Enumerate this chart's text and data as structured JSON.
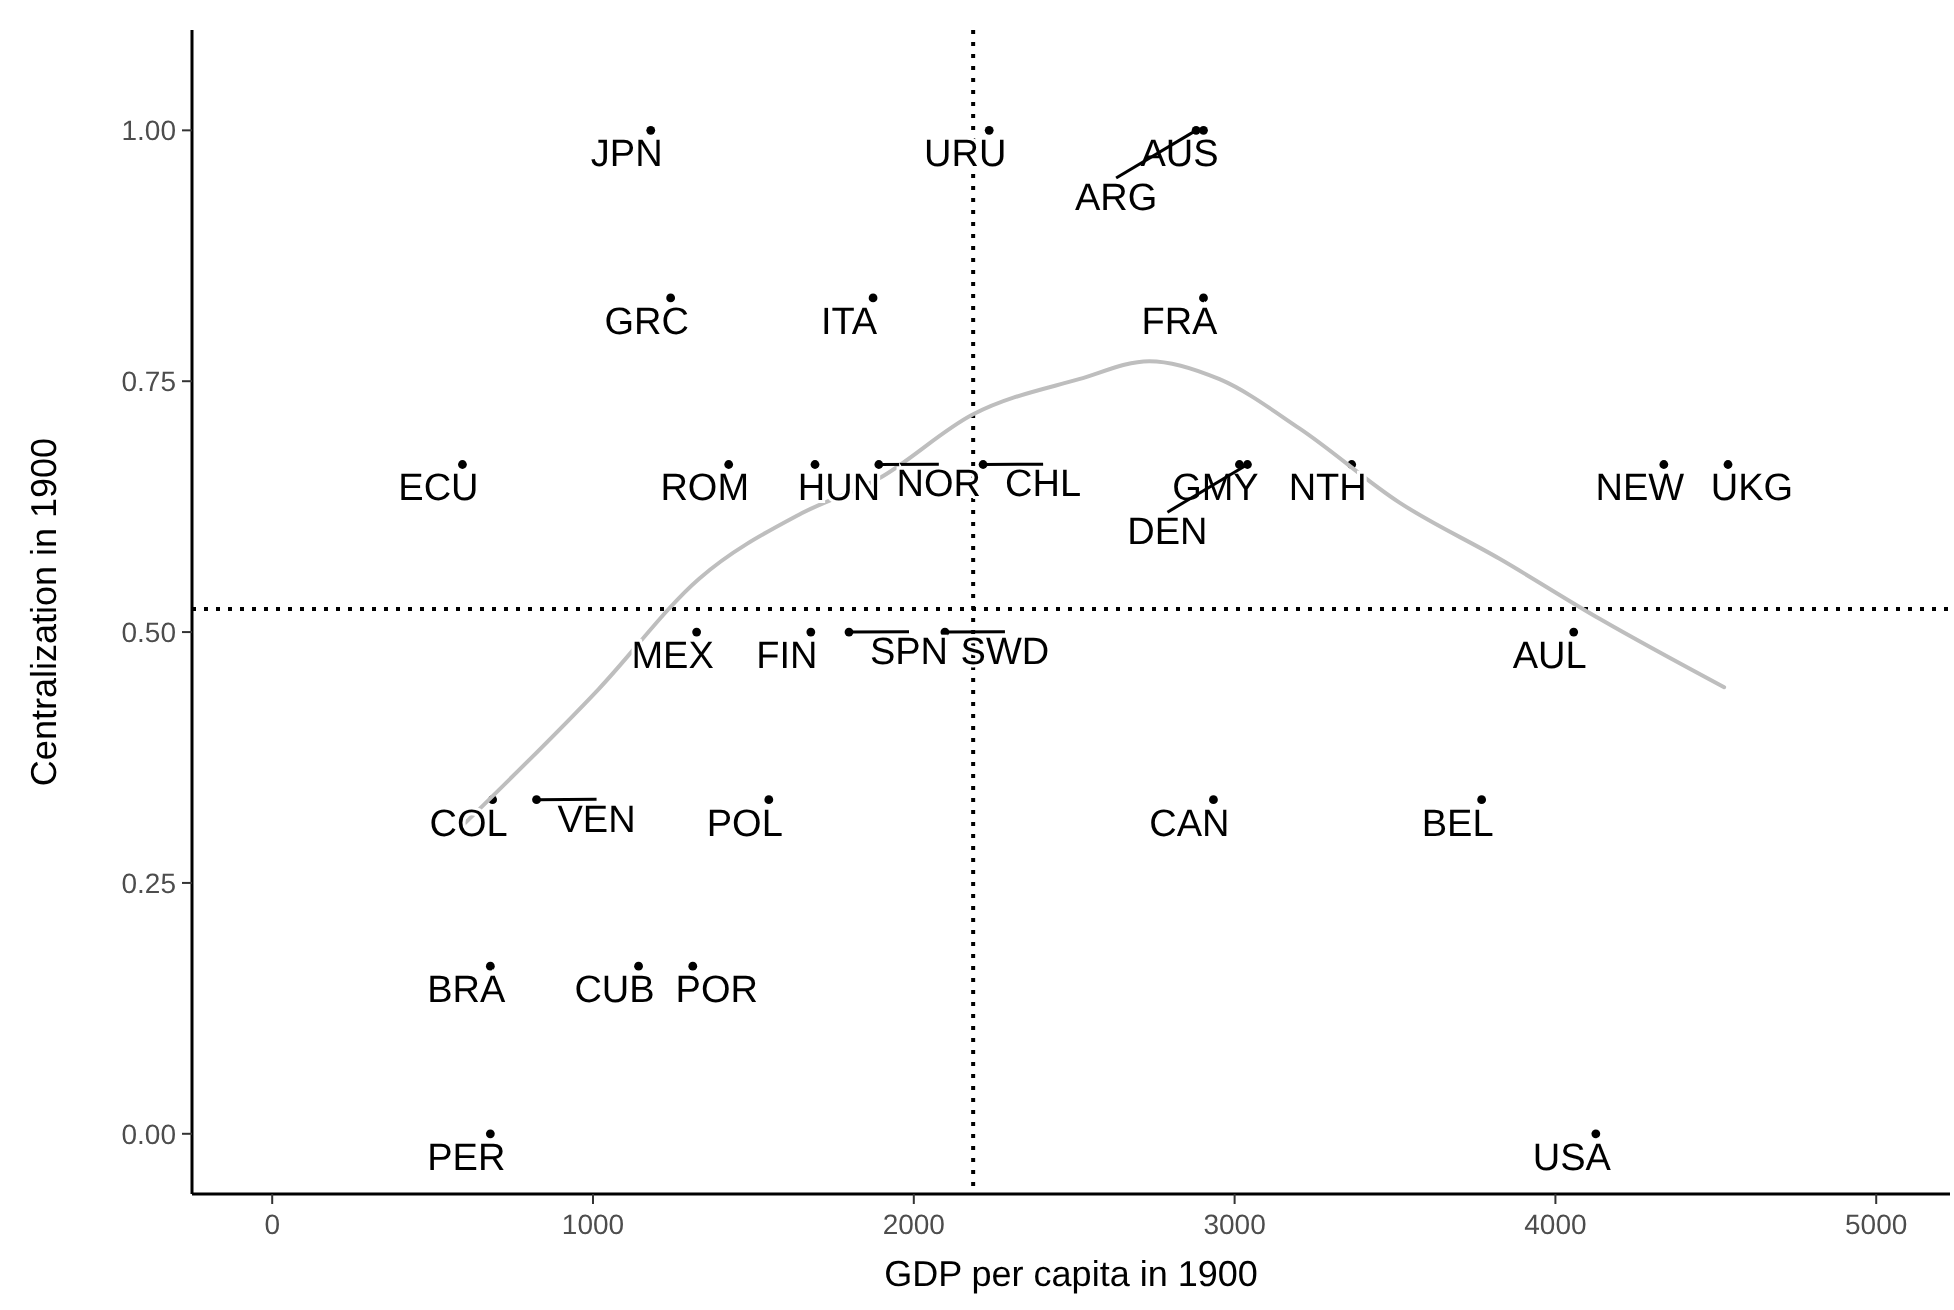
{
  "chart_data": {
    "type": "scatter",
    "xlabel": "GDP per capita in 1900",
    "ylabel": "Centralization in 1900",
    "xlim": [
      -250,
      5230
    ],
    "ylim": [
      -0.06,
      1.1
    ],
    "xticks": [
      0,
      1000,
      2000,
      3000,
      4000,
      5000
    ],
    "yticks": [
      {
        "value": 0,
        "label": "0.00"
      },
      {
        "value": 0.25,
        "label": "0.25"
      },
      {
        "value": 0.5,
        "label": "0.50"
      },
      {
        "value": 0.75,
        "label": "0.75"
      },
      {
        "value": 1,
        "label": "1.00"
      }
    ],
    "grid": false,
    "series": [
      {
        "type": "scatter",
        "color": "#000000",
        "marker": "circle",
        "x": [
          1180,
          2235,
          2903,
          2880,
          1242,
          1873,
          2903,
          593,
          1423,
          1692,
          1891,
          2216,
          3015,
          3040,
          3365,
          4338,
          4538,
          1323,
          1679,
          1798,
          2097,
          4057,
          687,
          824,
          1548,
          2934,
          3770,
          680,
          1142,
          1311,
          680,
          4126
        ],
        "values": [
          1,
          1,
          1,
          1,
          0.833,
          0.833,
          0.833,
          0.667,
          0.667,
          0.667,
          0.667,
          0.667,
          0.667,
          0.667,
          0.667,
          0.667,
          0.667,
          0.5,
          0.5,
          0.5,
          0.5,
          0.5,
          0.333,
          0.333,
          0.333,
          0.333,
          0.333,
          0.167,
          0.167,
          0.167,
          0,
          0
        ]
      },
      {
        "type": "line",
        "color": "#bebebe",
        "marker": "none",
        "line_style": "solid",
        "x": [
          599,
          1017,
          1330,
          1642,
          1891,
          2185,
          2515,
          2734,
          2953,
          3202,
          3514,
          3826,
          4139,
          4526
        ],
        "values": [
          0.309,
          0.443,
          0.553,
          0.617,
          0.653,
          0.717,
          0.752,
          0.77,
          0.752,
          0.703,
          0.629,
          0.573,
          0.513,
          0.445
        ]
      }
    ],
    "ref_lines": [
      {
        "axis": "x",
        "value": 2185,
        "line_style": "dotted",
        "color": "#000000"
      },
      {
        "axis": "y",
        "value": 0.523,
        "line_style": "dotted",
        "color": "#000000"
      }
    ],
    "annotations": [
      {
        "text": "JPN",
        "x": 1180,
        "y": 1
      },
      {
        "text": "URU",
        "x": 2235,
        "y": 1
      },
      {
        "text": "AUS",
        "x": 2903,
        "y": 1
      },
      {
        "text": "ARG",
        "x": 2880,
        "y": 1
      },
      {
        "text": "GRC",
        "x": 1242,
        "y": 0.833
      },
      {
        "text": "ITA",
        "x": 1873,
        "y": 0.833
      },
      {
        "text": "FRA",
        "x": 2903,
        "y": 0.833
      },
      {
        "text": "ECU",
        "x": 593,
        "y": 0.667
      },
      {
        "text": "ROM",
        "x": 1423,
        "y": 0.667
      },
      {
        "text": "HUN",
        "x": 1692,
        "y": 0.667
      },
      {
        "text": "NOR",
        "x": 1891,
        "y": 0.667
      },
      {
        "text": "CHL",
        "x": 2216,
        "y": 0.667
      },
      {
        "text": "GMY",
        "x": 3015,
        "y": 0.667
      },
      {
        "text": "DEN",
        "x": 3040,
        "y": 0.667
      },
      {
        "text": "NTH",
        "x": 3365,
        "y": 0.667
      },
      {
        "text": "NEW",
        "x": 4338,
        "y": 0.667
      },
      {
        "text": "UKG",
        "x": 4538,
        "y": 0.667
      },
      {
        "text": "MEX",
        "x": 1323,
        "y": 0.5
      },
      {
        "text": "FIN",
        "x": 1679,
        "y": 0.5
      },
      {
        "text": "SPN",
        "x": 1798,
        "y": 0.5
      },
      {
        "text": "SWD",
        "x": 2097,
        "y": 0.5
      },
      {
        "text": "AUL",
        "x": 4057,
        "y": 0.5
      },
      {
        "text": "COL",
        "x": 687,
        "y": 0.333
      },
      {
        "text": "VEN",
        "x": 824,
        "y": 0.333
      },
      {
        "text": "POL",
        "x": 1548,
        "y": 0.333
      },
      {
        "text": "CAN",
        "x": 2934,
        "y": 0.333
      },
      {
        "text": "BEL",
        "x": 3770,
        "y": 0.333
      },
      {
        "text": "BRA",
        "x": 680,
        "y": 0.167
      },
      {
        "text": "CUB",
        "x": 1142,
        "y": 0.167
      },
      {
        "text": "POR",
        "x": 1311,
        "y": 0.167
      },
      {
        "text": "PER",
        "x": 680,
        "y": 0
      },
      {
        "text": "USA",
        "x": 4126,
        "y": 0
      }
    ]
  }
}
